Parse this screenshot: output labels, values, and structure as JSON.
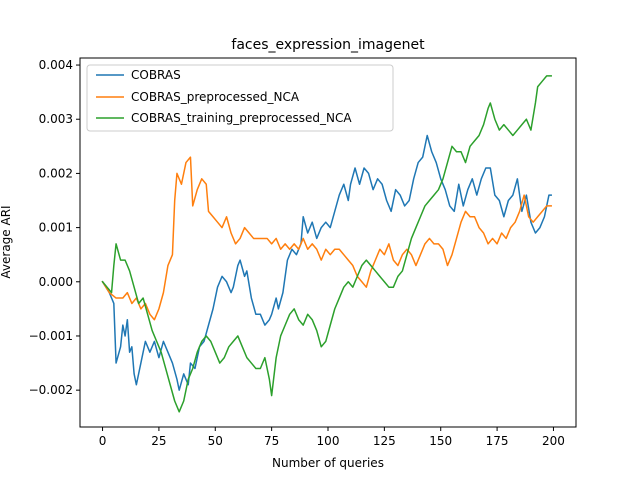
{
  "chart_data": {
    "type": "line",
    "title": "faces_expression_imagenet",
    "xlabel": "Number of queries",
    "ylabel": "Average ARI",
    "xlim": [
      -10,
      210
    ],
    "ylim": [
      -0.00268,
      0.00413
    ],
    "xticks": [
      0,
      25,
      50,
      75,
      100,
      125,
      150,
      175,
      200
    ],
    "yticks": [
      -0.002,
      -0.001,
      0.0,
      0.001,
      0.002,
      0.003,
      0.004
    ],
    "ytick_labels": [
      "−0.002",
      "−0.001",
      "0.000",
      "0.001",
      "0.002",
      "0.003",
      "0.004"
    ],
    "grid": false,
    "legend": "upper-left",
    "series": [
      {
        "name": "COBRAS",
        "color": "#1f77b4",
        "points": [
          [
            0,
            0.0
          ],
          [
            3,
            -0.0002
          ],
          [
            5,
            -0.0004
          ],
          [
            6,
            -0.0015
          ],
          [
            8,
            -0.0012
          ],
          [
            9,
            -0.0008
          ],
          [
            10,
            -0.001
          ],
          [
            11,
            -0.0007
          ],
          [
            12,
            -0.0013
          ],
          [
            13,
            -0.0012
          ],
          [
            14,
            -0.0017
          ],
          [
            15,
            -0.0019
          ],
          [
            17,
            -0.0015
          ],
          [
            19,
            -0.0011
          ],
          [
            21,
            -0.0013
          ],
          [
            23,
            -0.0011
          ],
          [
            25,
            -0.0014
          ],
          [
            27,
            -0.0011
          ],
          [
            29,
            -0.0013
          ],
          [
            31,
            -0.0015
          ],
          [
            33,
            -0.0018
          ],
          [
            34,
            -0.002
          ],
          [
            36,
            -0.0017
          ],
          [
            38,
            -0.0019
          ],
          [
            39,
            -0.0015
          ],
          [
            41,
            -0.0016
          ],
          [
            43,
            -0.0012
          ],
          [
            45,
            -0.0011
          ],
          [
            47,
            -0.0008
          ],
          [
            49,
            -0.0005
          ],
          [
            51,
            -0.0001
          ],
          [
            53,
            0.0001
          ],
          [
            55,
            0.0
          ],
          [
            57,
            -0.0002
          ],
          [
            58,
            -0.0001
          ],
          [
            60,
            0.0003
          ],
          [
            61,
            0.0004
          ],
          [
            63,
            0.0001
          ],
          [
            64,
            0.0002
          ],
          [
            66,
            -0.0003
          ],
          [
            68,
            -0.0006
          ],
          [
            70,
            -0.0006
          ],
          [
            72,
            -0.0008
          ],
          [
            74,
            -0.0007
          ],
          [
            75,
            -0.0006
          ],
          [
            77,
            -0.0003
          ],
          [
            78,
            -0.0005
          ],
          [
            80,
            -0.0002
          ],
          [
            82,
            0.0004
          ],
          [
            84,
            0.0006
          ],
          [
            86,
            0.0005
          ],
          [
            88,
            0.0007
          ],
          [
            89,
            0.0012
          ],
          [
            91,
            0.0009
          ],
          [
            93,
            0.0011
          ],
          [
            95,
            0.0008
          ],
          [
            97,
            0.001
          ],
          [
            99,
            0.0011
          ],
          [
            101,
            0.001
          ],
          [
            103,
            0.0013
          ],
          [
            105,
            0.0016
          ],
          [
            107,
            0.0018
          ],
          [
            109,
            0.0015
          ],
          [
            110,
            0.0018
          ],
          [
            112,
            0.0021
          ],
          [
            114,
            0.0018
          ],
          [
            116,
            0.0021
          ],
          [
            118,
            0.002
          ],
          [
            120,
            0.0017
          ],
          [
            122,
            0.0019
          ],
          [
            124,
            0.0018
          ],
          [
            126,
            0.0015
          ],
          [
            128,
            0.0013
          ],
          [
            130,
            0.0017
          ],
          [
            132,
            0.0016
          ],
          [
            134,
            0.0014
          ],
          [
            136,
            0.0015
          ],
          [
            138,
            0.0019
          ],
          [
            140,
            0.0022
          ],
          [
            142,
            0.0023
          ],
          [
            144,
            0.0027
          ],
          [
            146,
            0.0024
          ],
          [
            148,
            0.0022
          ],
          [
            150,
            0.0019
          ],
          [
            152,
            0.0017
          ],
          [
            154,
            0.0014
          ],
          [
            156,
            0.0013
          ],
          [
            158,
            0.0018
          ],
          [
            160,
            0.0014
          ],
          [
            162,
            0.0017
          ],
          [
            164,
            0.0019
          ],
          [
            166,
            0.0016
          ],
          [
            168,
            0.0019
          ],
          [
            170,
            0.0021
          ],
          [
            172,
            0.0021
          ],
          [
            174,
            0.0016
          ],
          [
            176,
            0.0015
          ],
          [
            178,
            0.0012
          ],
          [
            180,
            0.0015
          ],
          [
            182,
            0.0016
          ],
          [
            184,
            0.0019
          ],
          [
            186,
            0.0013
          ],
          [
            188,
            0.0016
          ],
          [
            190,
            0.0011
          ],
          [
            192,
            0.0009
          ],
          [
            194,
            0.001
          ],
          [
            196,
            0.0012
          ],
          [
            198,
            0.0016
          ],
          [
            199,
            0.0016
          ]
        ]
      },
      {
        "name": "COBRAS_preprocessed_NCA",
        "color": "#ff7f0e",
        "points": [
          [
            0,
            0.0
          ],
          [
            3,
            -0.0002
          ],
          [
            6,
            -0.0003
          ],
          [
            9,
            -0.0003
          ],
          [
            11,
            -0.0002
          ],
          [
            13,
            -0.0004
          ],
          [
            15,
            -0.0003
          ],
          [
            17,
            -0.0005
          ],
          [
            19,
            -0.0004
          ],
          [
            21,
            -0.0006
          ],
          [
            23,
            -0.0007
          ],
          [
            25,
            -0.0005
          ],
          [
            27,
            -0.0002
          ],
          [
            29,
            0.0003
          ],
          [
            31,
            0.0005
          ],
          [
            32,
            0.0015
          ],
          [
            33,
            0.002
          ],
          [
            35,
            0.0018
          ],
          [
            37,
            0.0022
          ],
          [
            39,
            0.0023
          ],
          [
            40,
            0.0014
          ],
          [
            42,
            0.0017
          ],
          [
            44,
            0.0019
          ],
          [
            46,
            0.0018
          ],
          [
            47,
            0.0013
          ],
          [
            49,
            0.0012
          ],
          [
            51,
            0.0011
          ],
          [
            53,
            0.001
          ],
          [
            55,
            0.0012
          ],
          [
            57,
            0.0009
          ],
          [
            59,
            0.0007
          ],
          [
            61,
            0.0008
          ],
          [
            63,
            0.001
          ],
          [
            65,
            0.0009
          ],
          [
            67,
            0.0008
          ],
          [
            70,
            0.0008
          ],
          [
            73,
            0.0008
          ],
          [
            75,
            0.0007
          ],
          [
            77,
            0.0008
          ],
          [
            79,
            0.0006
          ],
          [
            81,
            0.0007
          ],
          [
            83,
            0.0006
          ],
          [
            85,
            0.0007
          ],
          [
            87,
            0.0006
          ],
          [
            89,
            0.0008
          ],
          [
            91,
            0.0006
          ],
          [
            93,
            0.0007
          ],
          [
            95,
            0.0006
          ],
          [
            97,
            0.0004
          ],
          [
            99,
            0.0006
          ],
          [
            101,
            0.0005
          ],
          [
            103,
            0.0006
          ],
          [
            105,
            0.0006
          ],
          [
            107,
            0.0005
          ],
          [
            109,
            0.0004
          ],
          [
            111,
            0.0003
          ],
          [
            113,
            0.0001
          ],
          [
            115,
            0.0
          ],
          [
            117,
            -0.0001
          ],
          [
            119,
            0.0002
          ],
          [
            121,
            0.0004
          ],
          [
            123,
            0.0006
          ],
          [
            125,
            0.0005
          ],
          [
            127,
            0.0007
          ],
          [
            129,
            0.0004
          ],
          [
            131,
            0.0003
          ],
          [
            133,
            0.0005
          ],
          [
            135,
            0.0006
          ],
          [
            137,
            0.0005
          ],
          [
            139,
            0.0003
          ],
          [
            141,
            0.0005
          ],
          [
            143,
            0.0007
          ],
          [
            145,
            0.0008
          ],
          [
            147,
            0.0007
          ],
          [
            149,
            0.0007
          ],
          [
            151,
            0.0006
          ],
          [
            153,
            0.0003
          ],
          [
            155,
            0.0005
          ],
          [
            157,
            0.0008
          ],
          [
            159,
            0.0011
          ],
          [
            161,
            0.0013
          ],
          [
            163,
            0.0012
          ],
          [
            165,
            0.0012
          ],
          [
            167,
            0.001
          ],
          [
            169,
            0.0009
          ],
          [
            171,
            0.0007
          ],
          [
            173,
            0.0008
          ],
          [
            175,
            0.0007
          ],
          [
            177,
            0.0009
          ],
          [
            179,
            0.0008
          ],
          [
            181,
            0.001
          ],
          [
            183,
            0.0011
          ],
          [
            185,
            0.0013
          ],
          [
            187,
            0.0016
          ],
          [
            189,
            0.0012
          ],
          [
            191,
            0.0011
          ],
          [
            193,
            0.0012
          ],
          [
            195,
            0.0013
          ],
          [
            197,
            0.0014
          ],
          [
            199,
            0.0014
          ]
        ]
      },
      {
        "name": "COBRAS_training_preprocessed_NCA",
        "color": "#2ca02c",
        "points": [
          [
            0,
            0.0
          ],
          [
            2,
            -0.0001
          ],
          [
            4,
            -0.0002
          ],
          [
            5,
            0.0003
          ],
          [
            6,
            0.0007
          ],
          [
            8,
            0.0004
          ],
          [
            10,
            0.0004
          ],
          [
            12,
            0.0002
          ],
          [
            14,
            -0.0001
          ],
          [
            16,
            -0.0004
          ],
          [
            18,
            -0.0003
          ],
          [
            20,
            -0.0006
          ],
          [
            22,
            -0.0009
          ],
          [
            24,
            -0.0011
          ],
          [
            26,
            -0.0013
          ],
          [
            28,
            -0.0016
          ],
          [
            30,
            -0.0019
          ],
          [
            32,
            -0.0022
          ],
          [
            34,
            -0.0024
          ],
          [
            36,
            -0.0022
          ],
          [
            38,
            -0.0018
          ],
          [
            40,
            -0.0016
          ],
          [
            42,
            -0.0013
          ],
          [
            44,
            -0.0011
          ],
          [
            46,
            -0.001
          ],
          [
            48,
            -0.0011
          ],
          [
            50,
            -0.0013
          ],
          [
            52,
            -0.0015
          ],
          [
            54,
            -0.0014
          ],
          [
            56,
            -0.0012
          ],
          [
            58,
            -0.0011
          ],
          [
            60,
            -0.001
          ],
          [
            62,
            -0.0012
          ],
          [
            64,
            -0.0014
          ],
          [
            66,
            -0.0015
          ],
          [
            68,
            -0.0016
          ],
          [
            70,
            -0.0016
          ],
          [
            72,
            -0.0014
          ],
          [
            74,
            -0.0018
          ],
          [
            75,
            -0.0021
          ],
          [
            77,
            -0.0014
          ],
          [
            79,
            -0.001
          ],
          [
            81,
            -0.0008
          ],
          [
            83,
            -0.0006
          ],
          [
            85,
            -0.0005
          ],
          [
            87,
            -0.0007
          ],
          [
            89,
            -0.0008
          ],
          [
            91,
            -0.0006
          ],
          [
            93,
            -0.0007
          ],
          [
            95,
            -0.0009
          ],
          [
            97,
            -0.0012
          ],
          [
            99,
            -0.0011
          ],
          [
            101,
            -0.0008
          ],
          [
            103,
            -0.0005
          ],
          [
            105,
            -0.0003
          ],
          [
            107,
            -0.0001
          ],
          [
            109,
            0.0
          ],
          [
            111,
            -0.0001
          ],
          [
            113,
            0.0001
          ],
          [
            115,
            0.0003
          ],
          [
            117,
            0.0004
          ],
          [
            119,
            0.0003
          ],
          [
            121,
            0.0002
          ],
          [
            123,
            0.0001
          ],
          [
            125,
            0.0
          ],
          [
            127,
            -0.0001
          ],
          [
            129,
            -0.0001
          ],
          [
            131,
            0.0001
          ],
          [
            133,
            0.0002
          ],
          [
            135,
            0.0005
          ],
          [
            137,
            0.0008
          ],
          [
            139,
            0.001
          ],
          [
            141,
            0.0012
          ],
          [
            143,
            0.0014
          ],
          [
            145,
            0.0015
          ],
          [
            147,
            0.0016
          ],
          [
            149,
            0.0017
          ],
          [
            151,
            0.0019
          ],
          [
            153,
            0.0022
          ],
          [
            155,
            0.0025
          ],
          [
            157,
            0.0024
          ],
          [
            159,
            0.0024
          ],
          [
            161,
            0.0022
          ],
          [
            163,
            0.0025
          ],
          [
            165,
            0.0026
          ],
          [
            167,
            0.0027
          ],
          [
            169,
            0.0029
          ],
          [
            171,
            0.0032
          ],
          [
            172,
            0.0033
          ],
          [
            174,
            0.003
          ],
          [
            176,
            0.0028
          ],
          [
            178,
            0.0029
          ],
          [
            180,
            0.0028
          ],
          [
            182,
            0.0027
          ],
          [
            184,
            0.0028
          ],
          [
            186,
            0.0029
          ],
          [
            188,
            0.003
          ],
          [
            190,
            0.0028
          ],
          [
            192,
            0.0033
          ],
          [
            193,
            0.0036
          ],
          [
            195,
            0.0037
          ],
          [
            197,
            0.0038
          ],
          [
            199,
            0.0038
          ]
        ]
      }
    ]
  }
}
